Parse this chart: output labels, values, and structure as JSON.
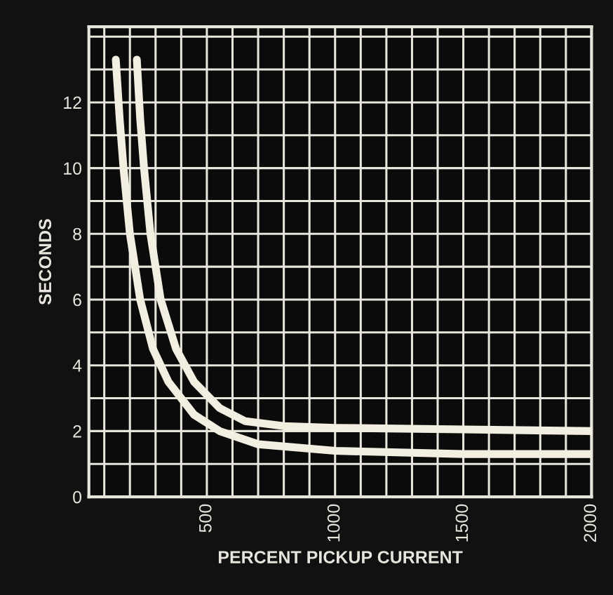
{
  "chart_data": {
    "type": "line",
    "xlabel": "PERCENT PICKUP CURRENT",
    "ylabel": "SECONDS",
    "xlim": [
      40,
      2000
    ],
    "ylim": [
      0,
      14.3
    ],
    "xticks": [
      500,
      1000,
      1500,
      2000
    ],
    "yticks": [
      0,
      2,
      4,
      6,
      8,
      10,
      12
    ],
    "grid": true,
    "marker": "none",
    "line_style": "solid",
    "series": [
      {
        "color": "#f2efe0",
        "x": [
          145,
          160,
          175,
          200,
          240,
          290,
          350,
          450,
          550,
          700,
          1000,
          1500,
          2000
        ],
        "values": [
          13.3,
          11.5,
          10,
          8,
          6,
          4.5,
          3.5,
          2.5,
          2.0,
          1.6,
          1.4,
          1.3,
          1.3
        ]
      },
      {
        "color": "#f2efe0",
        "x": [
          227,
          240,
          255,
          280,
          320,
          380,
          450,
          550,
          650,
          800,
          1000,
          1500,
          2000
        ],
        "values": [
          13.3,
          11.5,
          10,
          8,
          6,
          4.5,
          3.5,
          2.7,
          2.3,
          2.15,
          2.1,
          2.05,
          2.0
        ]
      }
    ]
  }
}
